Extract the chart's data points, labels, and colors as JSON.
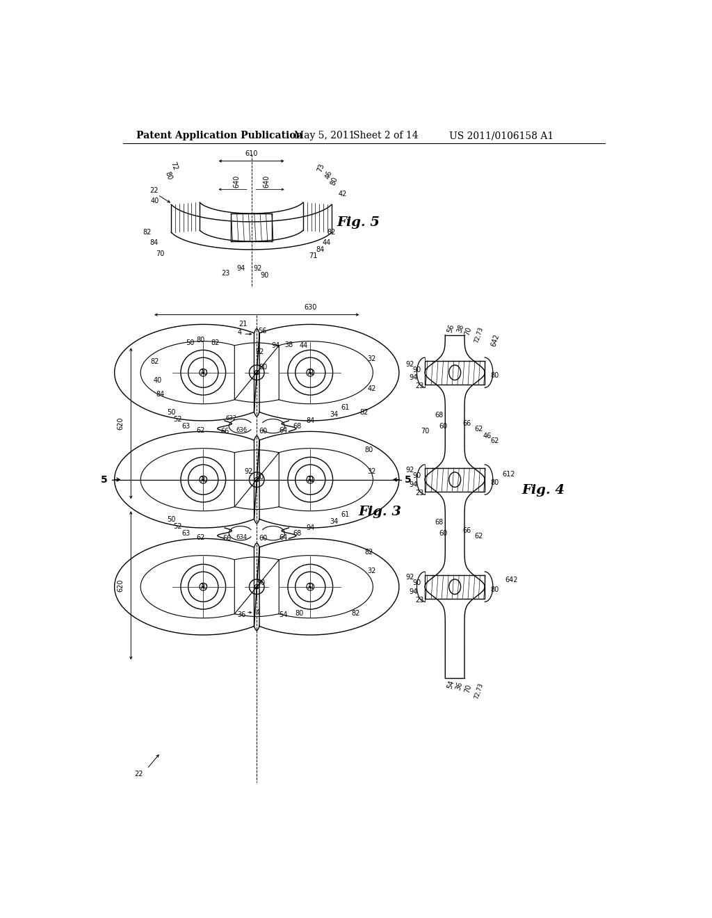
{
  "bg_color": "#ffffff",
  "header_text": "Patent Application Publication",
  "header_date": "May 5, 2011",
  "header_sheet": "Sheet 2 of 14",
  "header_patent": "US 2011/0106158 A1",
  "fig3_label": "Fig. 3",
  "fig4_label": "Fig. 4",
  "fig5_label": "Fig. 5",
  "line_color": "#000000",
  "font_size_header": 10,
  "font_size_label": 8,
  "font_size_fig": 14
}
